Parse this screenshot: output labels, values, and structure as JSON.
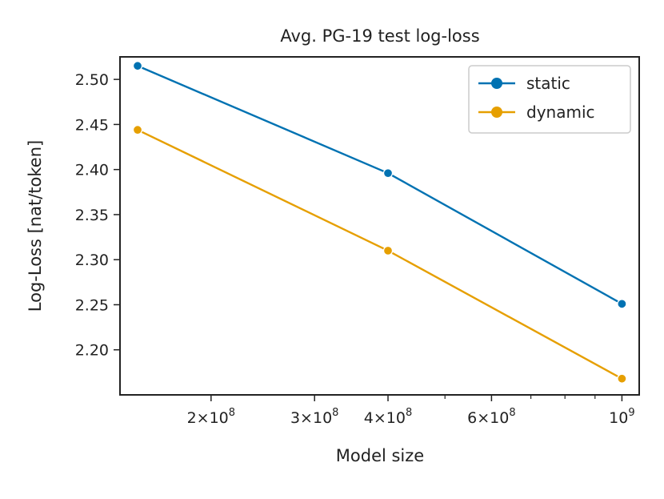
{
  "chart_data": {
    "type": "line",
    "title": "Avg. PG-19 test log-loss",
    "xlabel": "Model size",
    "ylabel": "Log-Loss [nat/token]",
    "xscale": "log",
    "xlim": [
      140000000,
      1070000000
    ],
    "ylim": [
      2.15,
      2.525
    ],
    "x": [
      150000000,
      400000000,
      1000000000
    ],
    "series": [
      {
        "name": "static",
        "color": "#0072b2",
        "values": [
          2.515,
          2.396,
          2.251
        ]
      },
      {
        "name": "dynamic",
        "color": "#e69f00",
        "values": [
          2.444,
          2.31,
          2.168
        ]
      }
    ],
    "yticks": [
      {
        "value": 2.2,
        "label": "2.20"
      },
      {
        "value": 2.25,
        "label": "2.25"
      },
      {
        "value": 2.3,
        "label": "2.30"
      },
      {
        "value": 2.35,
        "label": "2.35"
      },
      {
        "value": 2.4,
        "label": "2.40"
      },
      {
        "value": 2.45,
        "label": "2.45"
      },
      {
        "value": 2.5,
        "label": "2.50"
      }
    ],
    "xticks_major": [
      {
        "value": 200000000,
        "mantissa": "2",
        "exponent": "8"
      },
      {
        "value": 300000000,
        "mantissa": "3",
        "exponent": "8"
      },
      {
        "value": 400000000,
        "mantissa": "4",
        "exponent": "8"
      },
      {
        "value": 600000000,
        "mantissa": "6",
        "exponent": "8"
      },
      {
        "value": 1000000000,
        "mantissa": "",
        "exponent": "9"
      }
    ],
    "xticks_minor": [
      500000000,
      700000000,
      800000000,
      900000000
    ],
    "legend_position": "top-right",
    "grid": false
  }
}
